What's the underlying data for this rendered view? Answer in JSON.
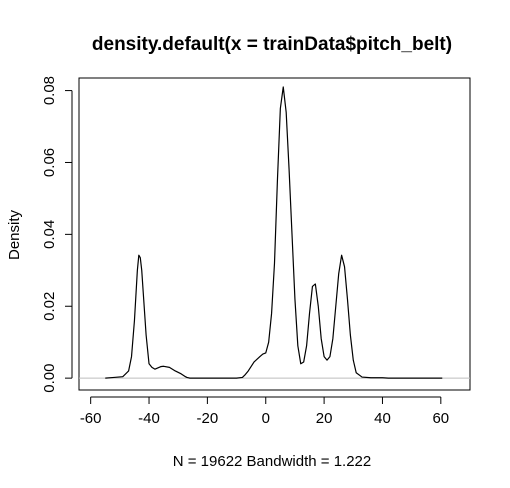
{
  "chart_data": {
    "type": "line",
    "title": "density.default(x = trainData$pitch_belt)",
    "xlabel": "N = 19622   Bandwidth = 1.222",
    "ylabel": "Density",
    "xlim": [
      -64,
      70
    ],
    "ylim": [
      -0.0033,
      0.0835
    ],
    "x_ticks": [
      -60,
      -40,
      -20,
      0,
      20,
      40,
      60
    ],
    "x_tick_labels": [
      "-60",
      "-40",
      "-20",
      "0",
      "20",
      "40",
      "60"
    ],
    "y_ticks": [
      0.0,
      0.02,
      0.04,
      0.06,
      0.08
    ],
    "y_tick_labels": [
      "0.00",
      "0.02",
      "0.04",
      "0.06",
      "0.08"
    ],
    "baseline": 0,
    "grid": false,
    "colors": {
      "line": "#000000",
      "baseline": "#bebebe",
      "frame": "#000000"
    },
    "series": [
      {
        "x": [
          -55,
          -52,
          -49,
          -47,
          -46,
          -45,
          -44,
          -43.5,
          -43,
          -42.5,
          -42,
          -41,
          -40,
          -39,
          -38,
          -36,
          -35,
          -33,
          -31,
          -29,
          -27.5,
          -27,
          -26,
          -24,
          -10,
          -8,
          -7,
          -6,
          -4,
          -2,
          -1,
          0,
          1,
          2,
          3,
          4,
          5,
          6,
          7,
          8,
          9,
          10,
          11,
          12,
          13,
          14,
          15,
          16,
          17,
          18,
          19,
          20,
          21,
          22,
          23,
          24,
          25,
          26,
          27,
          28,
          29,
          30,
          31,
          33,
          36,
          40,
          42,
          44,
          58,
          60.5
        ],
        "y": [
          0,
          0.0002,
          0.0004,
          0.002,
          0.006,
          0.016,
          0.03,
          0.0342,
          0.0335,
          0.03,
          0.024,
          0.012,
          0.004,
          0.003,
          0.0025,
          0.0032,
          0.0033,
          0.003,
          0.002,
          0.0012,
          0.0004,
          0.0002,
          0,
          0,
          0,
          0.0002,
          0.001,
          0.002,
          0.0045,
          0.006,
          0.0067,
          0.007,
          0.01,
          0.018,
          0.032,
          0.055,
          0.075,
          0.081,
          0.074,
          0.058,
          0.04,
          0.022,
          0.009,
          0.004,
          0.0045,
          0.009,
          0.018,
          0.0255,
          0.0262,
          0.02,
          0.011,
          0.006,
          0.005,
          0.006,
          0.011,
          0.02,
          0.029,
          0.0342,
          0.031,
          0.022,
          0.012,
          0.005,
          0.0015,
          0.0003,
          0.0001,
          0.0001,
          0,
          0,
          0,
          0
        ]
      }
    ]
  }
}
